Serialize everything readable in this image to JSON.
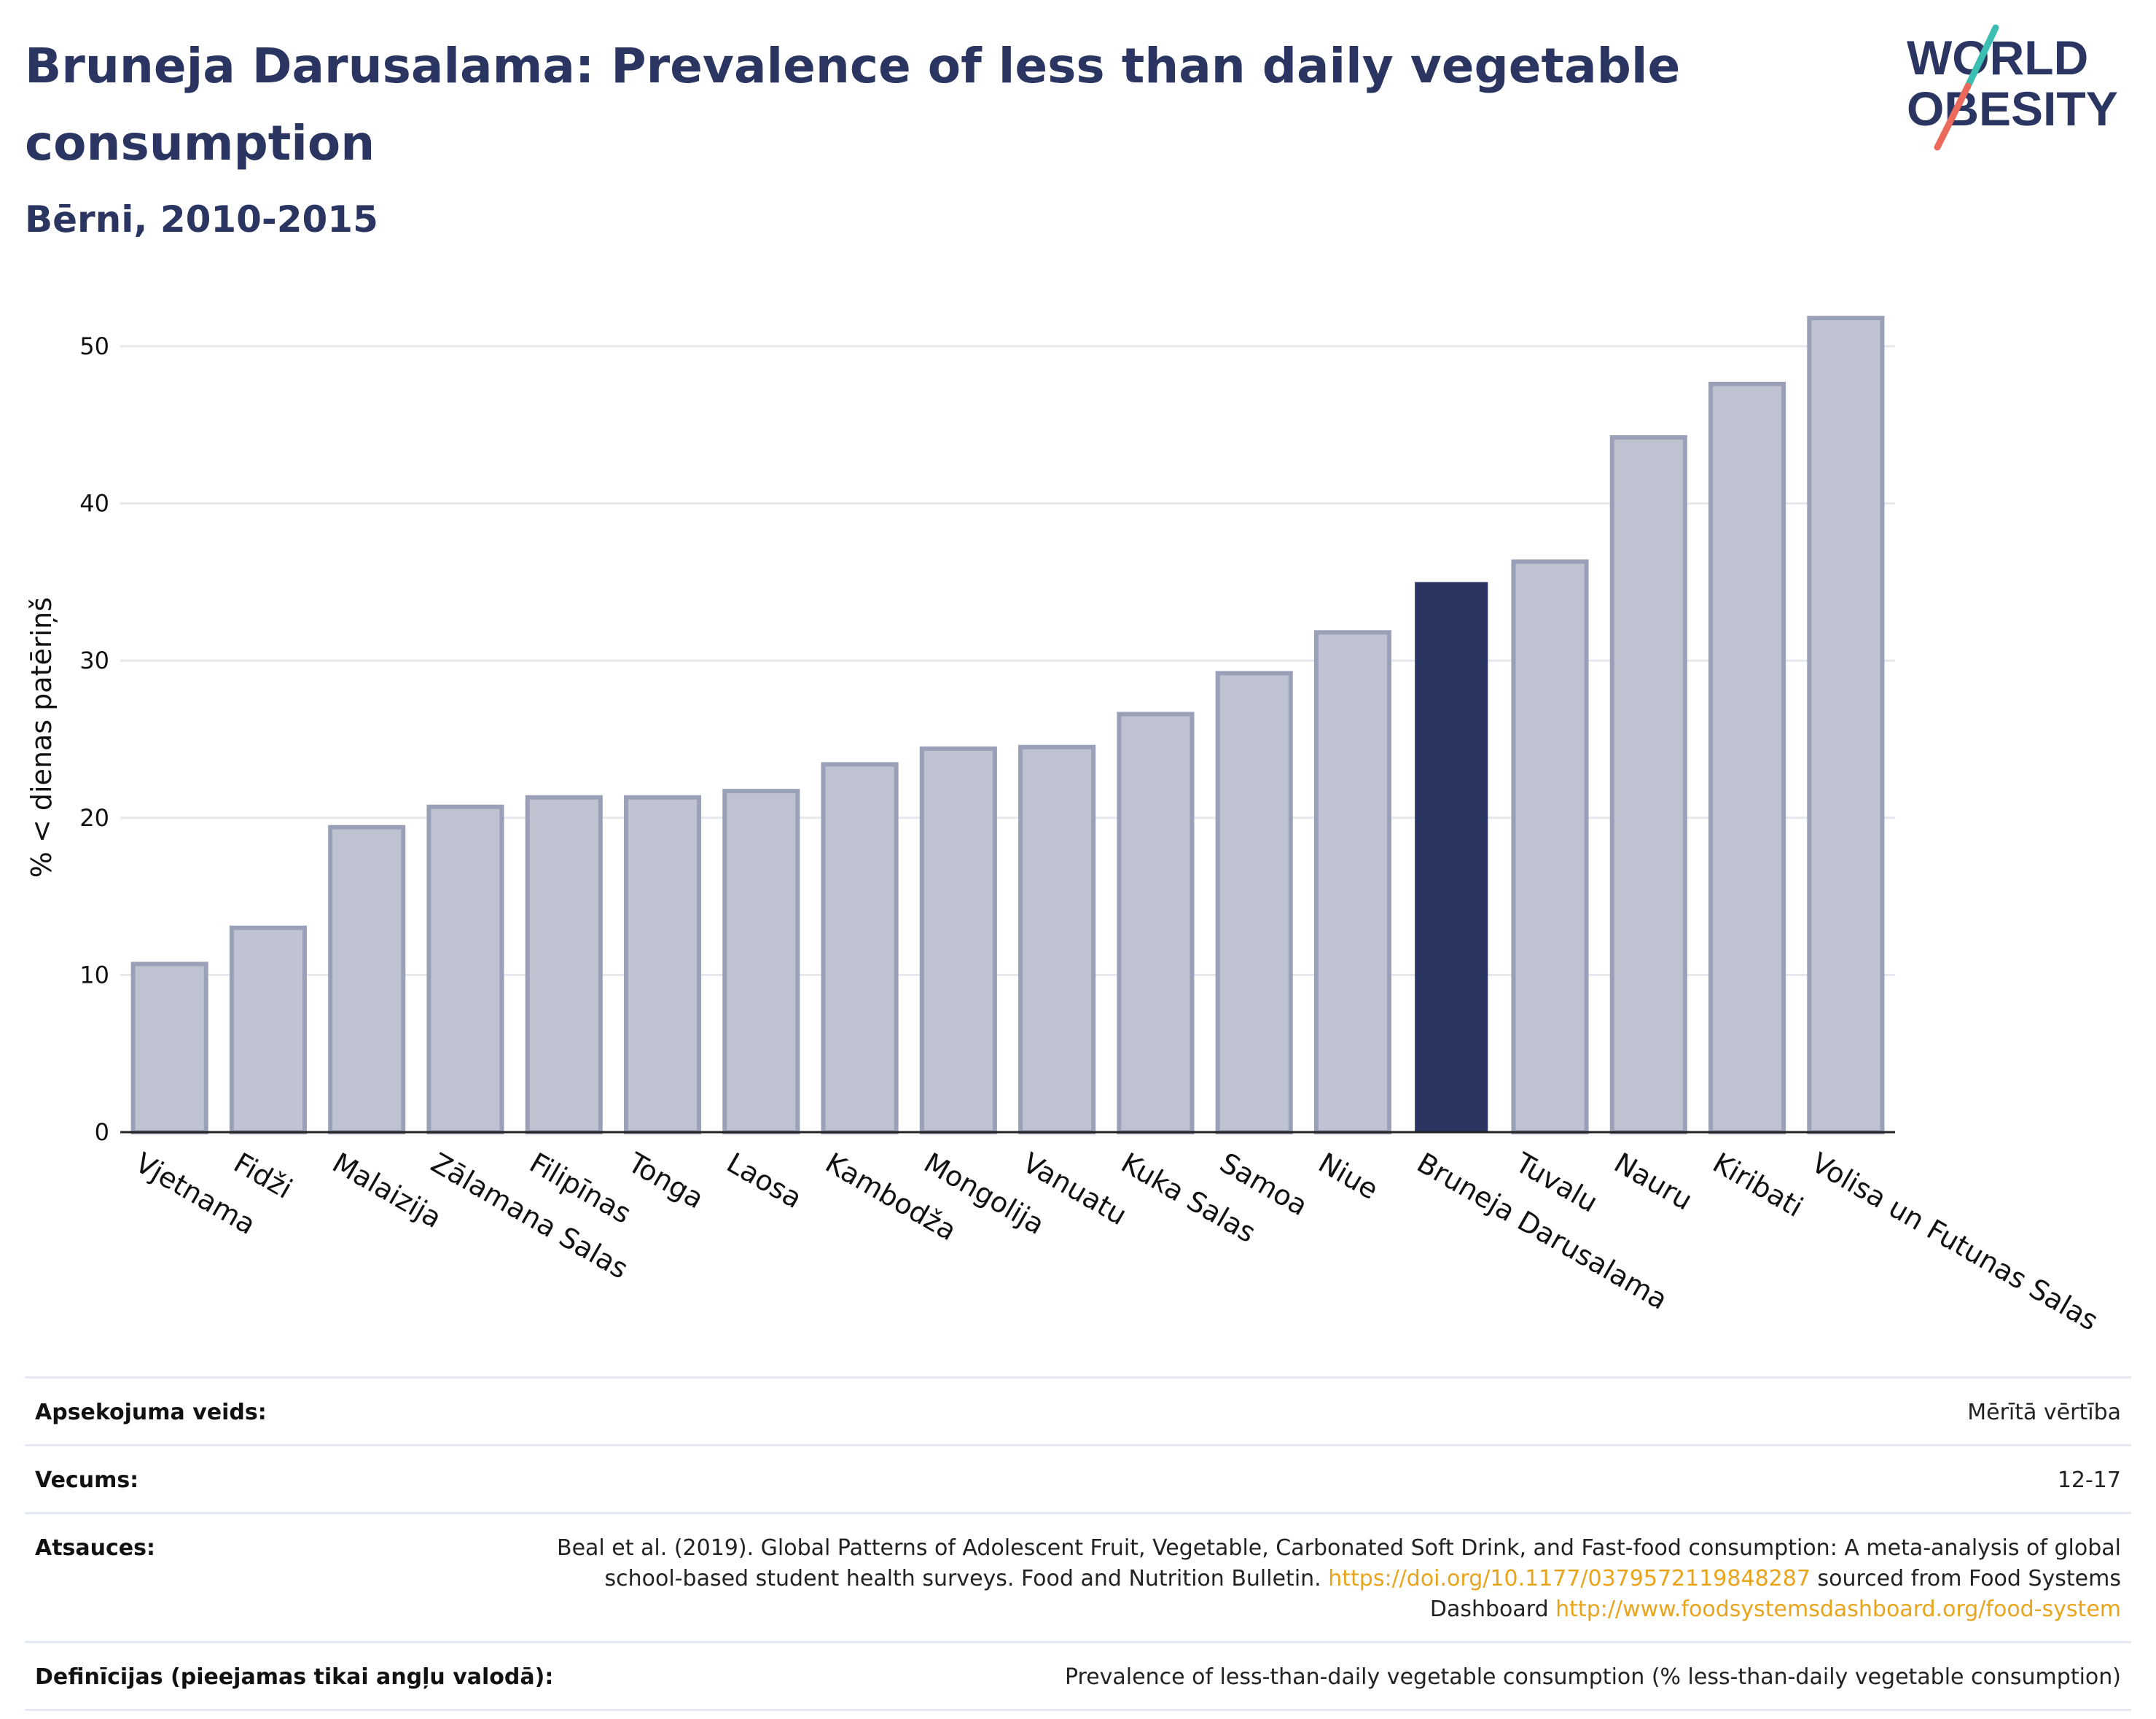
{
  "header": {
    "title": "Bruneja Darusalama: Prevalence of less than daily vegetable consumption",
    "subtitle": "Bērni, 2010-2015",
    "logo_line1": "WORLD",
    "logo_line2": "OBESITY"
  },
  "colors": {
    "highlight_bar": "#2a3561",
    "other_bar_fill": "#bfc2d0",
    "other_bar_stroke": "#9aa0b8",
    "title": "#2a3561",
    "link": "#e8a41b",
    "logo_teal": "#3bbfb2",
    "logo_coral": "#ec6a5c"
  },
  "chart_data": {
    "type": "bar",
    "ylabel": "% < dienas patēriņš",
    "xlabel": "",
    "ylim": [
      0,
      53
    ],
    "yticks": [
      0,
      10,
      20,
      30,
      40,
      50
    ],
    "grid": true,
    "highlight": "Bruneja Darusalama",
    "categories": [
      "Vjetnama",
      "Fidži",
      "Malaizija",
      "Zālamana Salas",
      "Filipīnas",
      "Tonga",
      "Laosa",
      "Kambodža",
      "Mongolija",
      "Vanuatu",
      "Kuka Salas",
      "Samoa",
      "Niue",
      "Bruneja Darusalama",
      "Tuvalu",
      "Nauru",
      "Kiribati",
      "Volisa un Futunas Salas"
    ],
    "values": [
      10.7,
      13.0,
      19.4,
      20.7,
      21.3,
      21.3,
      21.7,
      23.4,
      24.4,
      24.5,
      26.6,
      29.2,
      31.8,
      35.0,
      36.3,
      44.2,
      47.6,
      51.8
    ]
  },
  "meta": {
    "rows": [
      {
        "label": "Apsekojuma veids:",
        "value": "Mērītā vērtība"
      },
      {
        "label": "Vecums:",
        "value": "12-17"
      },
      {
        "label": "Atsauces:",
        "value": "Beal et al. (2019). Global Patterns of Adolescent Fruit, Vegetable, Carbonated Soft Drink, and Fast-food consumption: A meta-analysis of global school-based student health surveys. Food and Nutrition Bulletin. ",
        "link1": "https://doi.org/10.1177/0379572119848287",
        "mid": " sourced from Food Systems Dashboard ",
        "link2": "http://www.foodsystemsdashboard.org/food-system"
      },
      {
        "label": "Definīcijas (pieejamas tikai angļu valodā):",
        "value": "Prevalence of less-than-daily vegetable consumption (% less-than-daily vegetable consumption)"
      }
    ]
  }
}
